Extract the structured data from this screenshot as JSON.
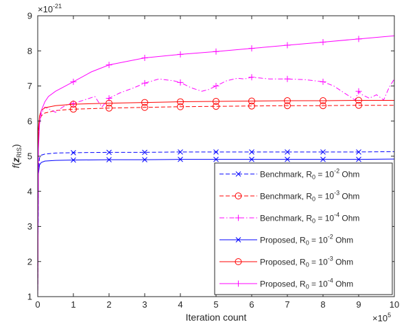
{
  "chart_data": {
    "type": "line",
    "xlabel": "Iteration count",
    "ylabel_main": "f",
    "ylabel_arg": "z",
    "ylabel_sub": "RIS",
    "x_exponent_label": "×10",
    "x_exponent": "5",
    "y_exponent_label": "×10",
    "y_exponent": "-21",
    "xlim": [
      0,
      10
    ],
    "ylim": [
      1,
      9
    ],
    "xticks": [
      "0",
      "1",
      "2",
      "3",
      "4",
      "5",
      "6",
      "7",
      "8",
      "9",
      "10"
    ],
    "yticks": [
      "1",
      "2",
      "3",
      "4",
      "5",
      "6",
      "7",
      "8",
      "9"
    ],
    "grid": false,
    "legend_position": "bottom-right",
    "series": [
      {
        "legend_prefix": "Benchmark, R",
        "legend_mid": " = 10",
        "legend_exp": "-2",
        "legend_suffix": " Ohm",
        "color": "#0000ff",
        "dash": "dashed",
        "marker": "x",
        "x": [
          0,
          0.02,
          0.05,
          0.1,
          0.2,
          0.5,
          1,
          2,
          3,
          4,
          5,
          6,
          7,
          8,
          9,
          10
        ],
        "y": [
          1.0,
          4.6,
          4.95,
          5.03,
          5.06,
          5.09,
          5.1,
          5.11,
          5.11,
          5.12,
          5.12,
          5.12,
          5.12,
          5.12,
          5.12,
          5.13
        ]
      },
      {
        "legend_prefix": "Benchmark, R",
        "legend_mid": " = 10",
        "legend_exp": "-3",
        "legend_suffix": " Ohm",
        "color": "#ff0000",
        "dash": "dashed",
        "marker": "o",
        "x": [
          0,
          0.02,
          0.05,
          0.1,
          0.2,
          0.5,
          1,
          2,
          3,
          4,
          5,
          6,
          7,
          8,
          9,
          10
        ],
        "y": [
          1.0,
          5.6,
          6.0,
          6.15,
          6.23,
          6.3,
          6.34,
          6.37,
          6.39,
          6.41,
          6.42,
          6.43,
          6.44,
          6.44,
          6.45,
          6.45
        ]
      },
      {
        "legend_prefix": "Benchmark, R",
        "legend_mid": " = 10",
        "legend_exp": "-4",
        "legend_suffix": " Ohm",
        "color": "#ff00ff",
        "dash": "dashdot",
        "marker": "+",
        "x": [
          0,
          0.02,
          0.05,
          0.1,
          0.2,
          0.3,
          0.5,
          0.7,
          0.9,
          1.0,
          1.3,
          1.6,
          1.8,
          2.0,
          2.3,
          2.7,
          3.0,
          3.4,
          3.8,
          4.0,
          4.3,
          4.6,
          4.8,
          5.0,
          5.3,
          5.6,
          5.8,
          6.0,
          6.5,
          7.0,
          7.5,
          8.0,
          8.3,
          8.6,
          8.9,
          9.0,
          9.1,
          9.3,
          9.5,
          9.7,
          9.85,
          10
        ],
        "y": [
          1.0,
          5.5,
          6.0,
          6.2,
          6.4,
          6.35,
          6.25,
          6.4,
          6.5,
          6.5,
          6.6,
          6.7,
          6.4,
          6.65,
          6.8,
          6.95,
          7.08,
          7.2,
          7.15,
          7.1,
          6.95,
          6.85,
          6.9,
          7.0,
          7.15,
          7.22,
          7.2,
          7.25,
          7.2,
          7.2,
          7.18,
          7.12,
          7.0,
          6.8,
          6.6,
          6.85,
          6.75,
          6.65,
          6.75,
          6.6,
          6.95,
          7.2
        ]
      },
      {
        "legend_prefix": "Proposed, R",
        "legend_mid": " = 10",
        "legend_exp": "-2",
        "legend_suffix": " Ohm",
        "color": "#0000ff",
        "dash": "solid",
        "marker": "x",
        "x": [
          0,
          0.02,
          0.05,
          0.1,
          0.2,
          0.5,
          1,
          2,
          3,
          4,
          5,
          6,
          7,
          8,
          9,
          10
        ],
        "y": [
          1.0,
          4.5,
          4.75,
          4.82,
          4.86,
          4.88,
          4.89,
          4.9,
          4.9,
          4.91,
          4.91,
          4.91,
          4.91,
          4.91,
          4.91,
          4.92
        ]
      },
      {
        "legend_prefix": "Proposed, R",
        "legend_mid": " = 10",
        "legend_exp": "-3",
        "legend_suffix": " Ohm",
        "color": "#ff0000",
        "dash": "solid",
        "marker": "o",
        "x": [
          0,
          0.02,
          0.05,
          0.1,
          0.2,
          0.5,
          1,
          2,
          3,
          4,
          5,
          6,
          7,
          8,
          9,
          10
        ],
        "y": [
          1.0,
          5.8,
          6.15,
          6.3,
          6.38,
          6.44,
          6.48,
          6.51,
          6.53,
          6.55,
          6.56,
          6.57,
          6.58,
          6.58,
          6.59,
          6.59
        ]
      },
      {
        "legend_prefix": "Proposed, R",
        "legend_mid": " = 10",
        "legend_exp": "-4",
        "legend_suffix": " Ohm",
        "color": "#ff00ff",
        "dash": "solid",
        "marker": "+",
        "x": [
          0,
          0.02,
          0.05,
          0.1,
          0.2,
          0.3,
          0.5,
          1,
          1.5,
          2,
          3,
          4,
          5,
          6,
          7,
          8,
          9,
          10
        ],
        "y": [
          1.0,
          5.2,
          5.9,
          6.3,
          6.55,
          6.7,
          6.85,
          7.12,
          7.4,
          7.6,
          7.8,
          7.9,
          7.98,
          8.07,
          8.16,
          8.25,
          8.34,
          8.43
        ]
      }
    ]
  }
}
